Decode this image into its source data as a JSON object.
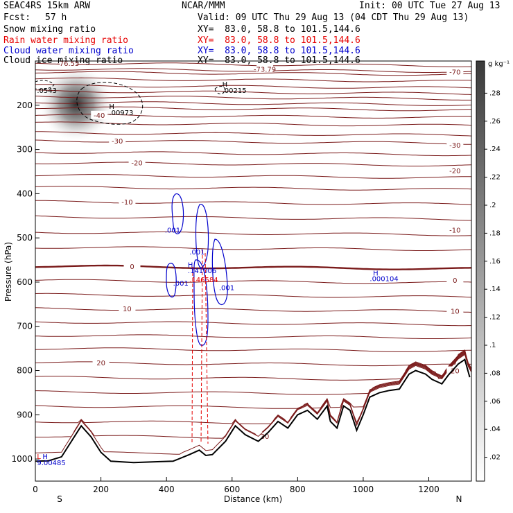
{
  "header": {
    "model": "SEAC4RS 15km ARW",
    "center": "NCAR/MMM",
    "init": "Init: 00 UTC Tue 27 Aug 13",
    "fcst_label": "Fcst:",
    "fcst_value": "57 h",
    "valid": "Valid: 09 UTC Thu 29 Aug 13 (04 CDT Thu 29 Aug 13)"
  },
  "legend": [
    {
      "label": "Snow mixing ratio",
      "xy": "XY=  83.0, 58.8 to 101.5,144.6",
      "color": "#000000"
    },
    {
      "label": "Rain water mixing ratio",
      "xy": "XY=  83.0, 58.8 to 101.5,144.6",
      "color": "#e60000"
    },
    {
      "label": "Cloud water mixing ratio",
      "xy": "XY=  83.0, 58.8 to 101.5,144.6",
      "color": "#0000cc"
    },
    {
      "label": "Cloud ice mixing ratio",
      "xy": "XY=  83.0, 58.8 to 101.5,144.6",
      "color": "#000000"
    }
  ],
  "chart_data": {
    "type": "cross-section contour",
    "xlabel": "Distance (km)",
    "ylabel": "Pressure (hPa)",
    "xlim": [
      0,
      1330
    ],
    "ylim": [
      1050,
      100
    ],
    "x_ticks": [
      0,
      200,
      400,
      600,
      800,
      1000,
      1200
    ],
    "y_ticks": [
      200,
      300,
      400,
      500,
      600,
      700,
      800,
      900,
      1000
    ],
    "endpoints": {
      "left": "S",
      "right": "N"
    },
    "colorbar": {
      "unit": "g kg⁻¹",
      "ticks": [
        ".02",
        ".04",
        ".06",
        ".08",
        ".1",
        ".12",
        ".14",
        ".16",
        ".18",
        ".2",
        ".22",
        ".24",
        ".26",
        ".28"
      ]
    },
    "temperature_contours": {
      "color": "#7a1a1a",
      "levels": [
        {
          "p": 105,
          "label": "-76.55",
          "lx": 100
        },
        {
          "p": 118,
          "label": "-73.79",
          "lx": 700
        },
        {
          "p": 125,
          "label": ""
        },
        {
          "p": 140,
          "label": ""
        },
        {
          "p": 155,
          "label": ""
        },
        {
          "p": 168,
          "label": ""
        },
        {
          "p": 180,
          "label": ""
        },
        {
          "p": 193,
          "label": ""
        },
        {
          "p": 205,
          "label": ""
        },
        {
          "p": 222,
          "label": "-40",
          "lx": 195
        },
        {
          "p": 240,
          "label": ""
        },
        {
          "p": 262,
          "label": ""
        },
        {
          "p": 280,
          "label": "-30",
          "lx": 250
        },
        {
          "p": 306,
          "label": ""
        },
        {
          "p": 330,
          "label": "-20",
          "lx": 310
        },
        {
          "p": 358,
          "label": ""
        },
        {
          "p": 385,
          "label": ""
        },
        {
          "p": 418,
          "label": "-10",
          "lx": 280
        },
        {
          "p": 452,
          "label": ""
        },
        {
          "p": 487,
          "label": ""
        },
        {
          "p": 521,
          "label": ""
        },
        {
          "p": 564,
          "label": "0",
          "lx": 295,
          "thick": true
        },
        {
          "p": 596,
          "label": ""
        },
        {
          "p": 628,
          "label": ""
        },
        {
          "p": 660,
          "label": "10",
          "lx": 280
        },
        {
          "p": 690,
          "label": ""
        },
        {
          "p": 720,
          "label": ""
        },
        {
          "p": 750,
          "label": ""
        },
        {
          "p": 782,
          "label": "20",
          "lx": 200
        },
        {
          "p": 815,
          "label": ""
        },
        {
          "p": 848,
          "label": ""
        },
        {
          "p": 880,
          "label": ""
        },
        {
          "p": 915,
          "label": ""
        },
        {
          "p": 948,
          "label": "30",
          "lx": 700
        },
        {
          "p": 985,
          "label": ""
        }
      ],
      "right_labels": [
        {
          "p": 124,
          "label": "-70"
        },
        {
          "p": 290,
          "label": "-30"
        },
        {
          "p": 348,
          "label": "-20"
        },
        {
          "p": 482,
          "label": "-10"
        },
        {
          "p": 595,
          "label": "0"
        },
        {
          "p": 665,
          "label": "10"
        },
        {
          "p": 800,
          "label": "20"
        }
      ]
    },
    "terrain": [
      [
        0,
        1005
      ],
      [
        40,
        1004
      ],
      [
        80,
        995
      ],
      [
        110,
        960
      ],
      [
        140,
        925
      ],
      [
        170,
        950
      ],
      [
        200,
        985
      ],
      [
        230,
        1005
      ],
      [
        300,
        1008
      ],
      [
        380,
        1006
      ],
      [
        420,
        1005
      ],
      [
        470,
        990
      ],
      [
        500,
        980
      ],
      [
        520,
        992
      ],
      [
        540,
        990
      ],
      [
        580,
        960
      ],
      [
        610,
        925
      ],
      [
        640,
        945
      ],
      [
        680,
        960
      ],
      [
        710,
        940
      ],
      [
        740,
        915
      ],
      [
        770,
        930
      ],
      [
        800,
        900
      ],
      [
        830,
        890
      ],
      [
        860,
        910
      ],
      [
        890,
        880
      ],
      [
        900,
        915
      ],
      [
        920,
        930
      ],
      [
        940,
        880
      ],
      [
        960,
        890
      ],
      [
        980,
        935
      ],
      [
        1000,
        900
      ],
      [
        1020,
        860
      ],
      [
        1050,
        850
      ],
      [
        1080,
        845
      ],
      [
        1110,
        842
      ],
      [
        1140,
        808
      ],
      [
        1160,
        800
      ],
      [
        1190,
        808
      ],
      [
        1210,
        820
      ],
      [
        1240,
        830
      ],
      [
        1260,
        810
      ],
      [
        1290,
        785
      ],
      [
        1310,
        775
      ],
      [
        1325,
        815
      ]
    ],
    "annotations": [
      {
        "x": 5,
        "p": 172,
        "text": ".0543",
        "color": "#000000"
      },
      {
        "x": 570,
        "p": 158,
        "text": "H",
        "color": "#000000"
      },
      {
        "x": 570,
        "p": 172,
        "text": ".00215",
        "color": "#000000"
      },
      {
        "x": 225,
        "p": 208,
        "text": "H",
        "color": "#000000"
      },
      {
        "x": 225,
        "p": 222,
        "text": ".00973",
        "color": "#000000"
      },
      {
        "x": 395,
        "p": 488,
        "text": ".001",
        "color": "#0000cc"
      },
      {
        "x": 470,
        "p": 537,
        "text": ".001",
        "color": "#0000cc"
      },
      {
        "x": 465,
        "p": 566,
        "text": "H",
        "color": "#0000cc"
      },
      {
        "x": 465,
        "p": 580,
        "text": ".141006",
        "color": "#0000cc"
      },
      {
        "x": 420,
        "p": 608,
        "text": ".001",
        "color": "#0000cc"
      },
      {
        "x": 470,
        "p": 600,
        "text": ".146584",
        "color": "#e60000"
      },
      {
        "x": 560,
        "p": 618,
        "text": ".001",
        "color": "#0000cc"
      },
      {
        "x": 1030,
        "p": 585,
        "text": "H",
        "color": "#0000cc"
      },
      {
        "x": 1020,
        "p": 598,
        "text": ".000104",
        "color": "#0000cc"
      },
      {
        "x": 5,
        "p": 1000,
        "text": "L",
        "color": "#e60000"
      },
      {
        "x": 22,
        "p": 1000,
        "text": "H",
        "color": "#0000cc"
      },
      {
        "x": 5,
        "p": 1014,
        "text": "9.00485",
        "color": "#0000cc"
      }
    ]
  }
}
